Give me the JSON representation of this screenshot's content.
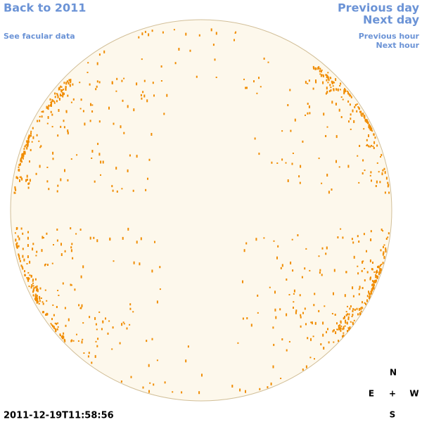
{
  "links": {
    "back": "Back to 2011",
    "facular": "See facular data",
    "previous_day": "Previous day",
    "next_day": "Next day",
    "previous_hour": "Previous hour",
    "next_hour": "Next hour"
  },
  "timestamp": "2011-12-19T11:58:56",
  "compass": {
    "north": "N",
    "east": "E",
    "center": "+",
    "west": "W",
    "south": "S"
  }
}
